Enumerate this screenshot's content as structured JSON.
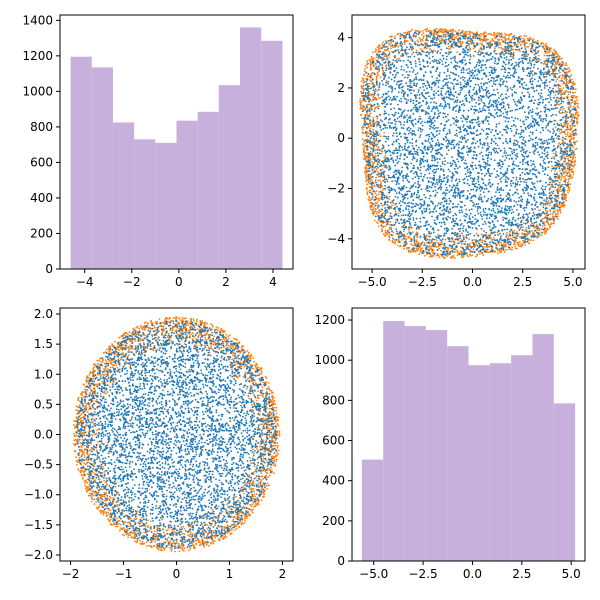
{
  "figure": {
    "background": "#ffffff"
  },
  "chart_data": [
    {
      "id": "top-left",
      "type": "bar",
      "subtype": "histogram",
      "bar_color": "#c8b0dd",
      "bins": [
        {
          "x0": -4.6,
          "x1": -3.7,
          "value": 1195
        },
        {
          "x0": -3.7,
          "x1": -2.8,
          "value": 1135
        },
        {
          "x0": -2.8,
          "x1": -1.9,
          "value": 825
        },
        {
          "x0": -1.9,
          "x1": -1.0,
          "value": 730
        },
        {
          "x0": -1.0,
          "x1": -0.1,
          "value": 710
        },
        {
          "x0": -0.1,
          "x1": 0.8,
          "value": 835
        },
        {
          "x0": 0.8,
          "x1": 1.7,
          "value": 885
        },
        {
          "x0": 1.7,
          "x1": 2.6,
          "value": 1035
        },
        {
          "x0": 2.6,
          "x1": 3.5,
          "value": 1360
        },
        {
          "x0": 3.5,
          "x1": 4.4,
          "value": 1285
        }
      ],
      "xlim": [
        -5.05,
        4.85
      ],
      "ylim": [
        0,
        1430
      ],
      "xticks": [
        -4,
        -2,
        0,
        2,
        4
      ],
      "xtick_labels": [
        "−4",
        "−2",
        "0",
        "2",
        "4"
      ],
      "yticks": [
        0,
        200,
        400,
        600,
        800,
        1000,
        1200,
        1400
      ],
      "ytick_labels": [
        "0",
        "200",
        "400",
        "600",
        "800",
        "1000",
        "1200",
        "1400"
      ],
      "grid": false,
      "title": "",
      "xlabel": "",
      "ylabel": ""
    },
    {
      "id": "top-right",
      "type": "scatter",
      "xlim": [
        -6.0,
        5.6
      ],
      "ylim": [
        -5.2,
        4.9
      ],
      "xticks": [
        -5.0,
        -2.5,
        0.0,
        2.5,
        5.0
      ],
      "xtick_labels": [
        "−5.0",
        "−2.5",
        "0.0",
        "2.5",
        "5.0"
      ],
      "yticks": [
        -4,
        -2,
        0,
        2,
        4
      ],
      "ytick_labels": [
        "−4",
        "−2",
        "0",
        "2",
        "4"
      ],
      "grid": false,
      "title": "",
      "xlabel": "",
      "ylabel": "",
      "series": [
        {
          "color": "#ff7f0e",
          "shape": "blob-ring",
          "x_range": [
            -5.6,
            5.1
          ],
          "y_range": [
            -4.6,
            4.4
          ],
          "approx_points": 2500
        },
        {
          "color": "#1f77b4",
          "shape": "blob-fill",
          "x_range": [
            -5.6,
            5.1
          ],
          "y_range": [
            -4.6,
            4.4
          ],
          "approx_points": 5000
        }
      ]
    },
    {
      "id": "bottom-left",
      "type": "scatter",
      "xlim": [
        -2.2,
        2.2
      ],
      "ylim": [
        -2.1,
        2.1
      ],
      "xticks": [
        -2,
        -1,
        0,
        1,
        2
      ],
      "xtick_labels": [
        "−2",
        "−1",
        "0",
        "1",
        "2"
      ],
      "yticks": [
        -2.0,
        -1.5,
        -1.0,
        -0.5,
        0.0,
        0.5,
        1.0,
        1.5,
        2.0
      ],
      "ytick_labels": [
        "−2.0",
        "−1.5",
        "−1.0",
        "−0.5",
        "0.0",
        "0.5",
        "1.0",
        "1.5",
        "2.0"
      ],
      "grid": false,
      "title": "",
      "xlabel": "",
      "ylabel": "",
      "series": [
        {
          "color": "#ff7f0e",
          "shape": "disk-ring",
          "radius": 1.95,
          "approx_points": 2500
        },
        {
          "color": "#1f77b4",
          "shape": "disk-fill",
          "radius": 1.95,
          "approx_points": 5000
        }
      ]
    },
    {
      "id": "bottom-right",
      "type": "bar",
      "subtype": "histogram",
      "bar_color": "#c8b0dd",
      "bins": [
        {
          "x0": -5.6,
          "x1": -4.52,
          "value": 505
        },
        {
          "x0": -4.52,
          "x1": -3.44,
          "value": 1195
        },
        {
          "x0": -3.44,
          "x1": -2.36,
          "value": 1170
        },
        {
          "x0": -2.36,
          "x1": -1.28,
          "value": 1150
        },
        {
          "x0": -1.28,
          "x1": -0.2,
          "value": 1070
        },
        {
          "x0": -0.2,
          "x1": 0.88,
          "value": 975
        },
        {
          "x0": 0.88,
          "x1": 1.96,
          "value": 985
        },
        {
          "x0": 1.96,
          "x1": 3.04,
          "value": 1025
        },
        {
          "x0": 3.04,
          "x1": 4.12,
          "value": 1130
        },
        {
          "x0": 4.12,
          "x1": 5.2,
          "value": 785
        }
      ],
      "xlim": [
        -6.1,
        5.7
      ],
      "ylim": [
        0,
        1260
      ],
      "xticks": [
        -5.0,
        -2.5,
        0.0,
        2.5,
        5.0
      ],
      "xtick_labels": [
        "−5.0",
        "−2.5",
        "0.0",
        "2.5",
        "5.0"
      ],
      "yticks": [
        0,
        200,
        400,
        600,
        800,
        1000,
        1200
      ],
      "ytick_labels": [
        "0",
        "200",
        "400",
        "600",
        "800",
        "1000",
        "1200"
      ],
      "grid": false,
      "title": "",
      "xlabel": "",
      "ylabel": ""
    }
  ]
}
